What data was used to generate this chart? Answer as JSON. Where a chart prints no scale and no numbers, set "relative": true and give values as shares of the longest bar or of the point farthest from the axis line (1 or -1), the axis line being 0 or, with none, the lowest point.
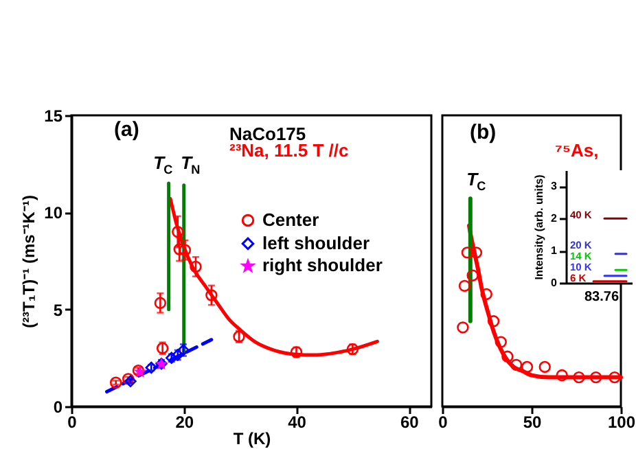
{
  "chart_data": [
    {
      "type": "scatter",
      "xlabel": "T (K)",
      "ylabel": "(²³T₁T)⁻¹ (ms⁻¹K⁻¹)",
      "xlim": [
        0,
        64
      ],
      "xticks": [
        0,
        20,
        40,
        60
      ],
      "ylim": [
        0,
        15
      ],
      "yticks": [
        0,
        5,
        10,
        15
      ],
      "legend": "top right",
      "annotations": [
        "(a)",
        "NaCo175",
        "²³Na, 11.5 T //c",
        "T$_{C}$",
        "T$_{N}$"
      ],
      "series": [
        {
          "name": "Center",
          "color": "#ff0000",
          "marker": "circle",
          "x": [
            7.9,
            10.1,
            11.9,
            15.8,
            16.2,
            18.9,
            19.2,
            20.2,
            22.1,
            24.9,
            29.8,
            40,
            50
          ],
          "values": [
            1.23,
            1.42,
            1.85,
            5.33,
            3.0,
            9.0,
            8.1,
            8.06,
            7.2,
            5.73,
            3.6,
            2.8,
            2.95
          ],
          "errors": [
            0.1,
            0.1,
            0.15,
            0.5,
            0.3,
            0.8,
            0.6,
            0.5,
            0.5,
            0.5,
            0.3,
            0.25,
            0.25
          ]
        },
        {
          "name": "left shoulder",
          "color": "#0000ff",
          "marker": "diamond",
          "x": [
            10.5,
            14.2,
            16,
            17.8,
            18.9,
            19.9
          ],
          "values": [
            1.3,
            2.0,
            2.2,
            2.5,
            2.65,
            2.9
          ],
          "errors": [
            0.1,
            0.15,
            0.2,
            0.2,
            0.25,
            0.3
          ]
        },
        {
          "name": "right shoulder",
          "color": "#ff00ff",
          "marker": "star",
          "x": [
            12.2,
            16
          ],
          "values": [
            1.8,
            2.2
          ]
        },
        {
          "type": "line",
          "color": "#ff0000",
          "x": [
            17.6,
            18.5,
            19.9,
            21.5,
            23.9,
            26,
            28,
            30,
            32.8,
            36,
            40,
            43,
            46,
            50,
            54.4
          ],
          "values": [
            10.7,
            9.6,
            8.3,
            7.2,
            6.16,
            5.3,
            4.5,
            3.95,
            3.3,
            2.9,
            2.68,
            2.65,
            2.72,
            2.95,
            3.35
          ]
        },
        {
          "type": "line",
          "color": "#0000ff",
          "line_style": "dashed",
          "x": [
            6.3,
            24.9
          ],
          "values": [
            0.76,
            3.44
          ]
        },
        {
          "type": "line",
          "color": "#008000",
          "x": [
            17.3,
            17.3
          ],
          "values": [
            5.0,
            11.5
          ]
        },
        {
          "type": "line",
          "color": "#008000",
          "x": [
            20,
            20
          ],
          "values": [
            2.8,
            11.4
          ]
        }
      ]
    },
    {
      "type": "scatter",
      "relative": true,
      "xlim": [
        0,
        100
      ],
      "xticks": [
        0,
        50,
        100
      ],
      "annotations": [
        "(b)",
        "⁷⁵As,",
        "T$_{C}$"
      ],
      "series": [
        {
          "color": "#ff0000",
          "marker": "circle",
          "x": [
            11.5,
            12.5,
            14,
            17,
            19,
            24.7,
            28.7,
            32.8,
            36.5,
            41.4,
            47.5,
            57.4,
            67,
            76.5,
            86,
            96.5
          ],
          "values": [
            0.38,
            0.58,
            0.74,
            0.63,
            0.74,
            0.54,
            0.41,
            0.31,
            0.24,
            0.2,
            0.19,
            0.19,
            0.15,
            0.14,
            0.14,
            0.14
          ]
        },
        {
          "type": "line",
          "color": "#ff0000",
          "x": [
            15,
            16,
            18,
            20,
            22,
            24,
            26,
            28,
            30,
            35,
            40,
            45,
            50,
            60,
            70,
            80,
            90,
            100
          ],
          "values": [
            0.87,
            0.82,
            0.74,
            0.66,
            0.57,
            0.5,
            0.44,
            0.38,
            0.33,
            0.24,
            0.19,
            0.17,
            0.15,
            0.14,
            0.14,
            0.14,
            0.14,
            0.14
          ]
        },
        {
          "type": "line",
          "color": "#008000",
          "x": [
            15.7,
            15.7
          ],
          "values": [
            0.41,
            1
          ]
        }
      ]
    },
    {
      "type": "line",
      "ylabel": "Intensity (arb. units)",
      "categories": [
        null,
        null,
        null,
        null,
        null,
        null
      ],
      "ylim": [
        0,
        3.5
      ],
      "yticks": [
        0,
        1,
        2,
        3
      ],
      "tick_labels": "y",
      "annotations": [
        "83.76"
      ],
      "series": [
        {
          "name": "40 K",
          "color": "#8b0000",
          "values": [
            null,
            null,
            null,
            2,
            2,
            2
          ]
        },
        {
          "name": "20 K",
          "color": "#3333cc",
          "values": [
            null,
            null,
            null,
            null,
            0.9,
            0.9
          ]
        },
        {
          "name": "14 K",
          "color": "#00cc00",
          "values": [
            null,
            null,
            null,
            null,
            0.4,
            0.4
          ]
        },
        {
          "name": "10 K",
          "color": "#3333ff",
          "values": [
            null,
            null,
            null,
            0.22,
            0.22,
            0.22
          ]
        },
        {
          "name": "6 K",
          "color": "#cc0000",
          "values": [
            null,
            null,
            0.05,
            0.05,
            0.05,
            0.05
          ]
        }
      ]
    }
  ]
}
